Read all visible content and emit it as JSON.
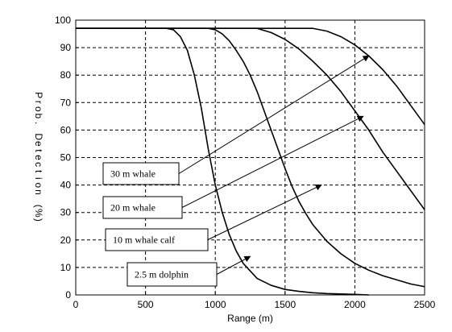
{
  "chart_data": {
    "type": "line",
    "xlabel": "Range (m)",
    "ylabel": "Prob. Detection (%)",
    "xlim": [
      0,
      2500
    ],
    "ylim": [
      0,
      100
    ],
    "xticks": [
      0,
      500,
      1000,
      1500,
      2000,
      2500
    ],
    "yticks": [
      0,
      10,
      20,
      30,
      40,
      50,
      60,
      70,
      80,
      90,
      100
    ],
    "grid": true,
    "series": [
      {
        "name": "2.5 m dolphin",
        "x": [
          0,
          650,
          700,
          750,
          800,
          850,
          900,
          950,
          1000,
          1050,
          1100,
          1150,
          1200,
          1300,
          1400,
          1500,
          1600,
          1700,
          1800,
          2000,
          2100
        ],
        "y": [
          97,
          97,
          96.5,
          94,
          89,
          80,
          68,
          53,
          40,
          30,
          22,
          16,
          11.5,
          6,
          3.5,
          2,
          1.3,
          0.8,
          0.5,
          0.2,
          0
        ]
      },
      {
        "name": "10 m whale calf",
        "x": [
          0,
          950,
          1000,
          1050,
          1100,
          1150,
          1200,
          1250,
          1300,
          1350,
          1400,
          1450,
          1500,
          1550,
          1600,
          1650,
          1700,
          1800,
          1900,
          2000,
          2100,
          2200,
          2300,
          2400,
          2500
        ],
        "y": [
          97,
          97,
          96.5,
          95,
          92.5,
          89,
          85,
          80,
          74,
          67,
          60,
          53,
          46,
          39.5,
          34,
          29.5,
          25.5,
          19.5,
          15,
          11.5,
          9,
          7,
          5.5,
          4,
          3
        ]
      },
      {
        "name": "20 m whale",
        "x": [
          0,
          1300,
          1400,
          1500,
          1600,
          1700,
          1800,
          1900,
          2000,
          2100,
          2200,
          2300,
          2400,
          2500
        ],
        "y": [
          97,
          97,
          95.5,
          93,
          89.5,
          85,
          80,
          74,
          67,
          60,
          52,
          45,
          38,
          31
        ]
      },
      {
        "name": "30 m whale",
        "x": [
          0,
          1700,
          1800,
          1900,
          2000,
          2100,
          2200,
          2300,
          2400,
          2500
        ],
        "y": [
          97,
          97,
          96,
          94,
          91,
          87,
          82,
          76,
          69,
          62
        ]
      }
    ],
    "annotations": [
      {
        "text": "30 m whale",
        "point_to": [
          2100,
          87
        ]
      },
      {
        "text": "20 m whale",
        "point_to": [
          2060,
          65
        ]
      },
      {
        "text": "10 m whale calf",
        "point_to": [
          1760,
          40
        ]
      },
      {
        "text": "2.5 m dolphin",
        "point_to": [
          1250,
          14
        ]
      }
    ]
  }
}
